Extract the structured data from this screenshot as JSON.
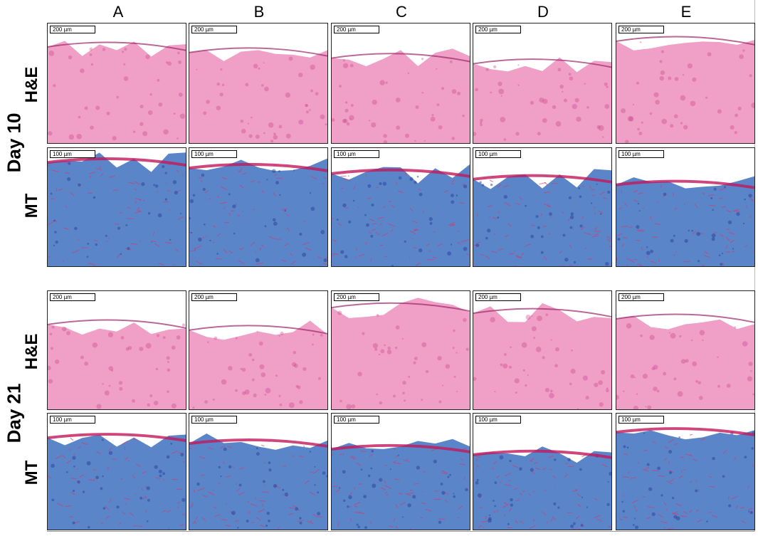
{
  "columns": [
    "A",
    "B",
    "C",
    "D",
    "E"
  ],
  "days": [
    "Day 10",
    "Day 21"
  ],
  "stains": {
    "he": "H&E",
    "mt": "MT"
  },
  "scale_bars": {
    "he": "200 µm",
    "mt": "100 µm"
  },
  "colors": {
    "he_background": "#f6c6dd",
    "he_tissue": "#e6559d",
    "mt_collagen": "#5a86c9",
    "mt_muscle": "#d3386d"
  }
}
